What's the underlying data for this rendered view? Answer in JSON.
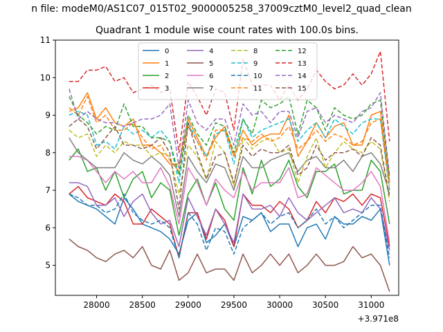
{
  "figure": {
    "suptitle": "n file: modeM0/AS1C07_015T02_9000005258_37009cztM0_level2_quad_clean"
  },
  "chart_data": {
    "type": "line",
    "title": "Quadrant 1 module wise count rates with 100.0s bins.",
    "xlabel": "",
    "ylabel": "",
    "x_offset_label": "+3.971e8",
    "xlim": [
      27550,
      31300
    ],
    "ylim": [
      4.2,
      11.0
    ],
    "xticks": [
      28000,
      28500,
      29000,
      29500,
      30000,
      30500,
      31000
    ],
    "yticks": [
      5,
      6,
      7,
      8,
      9,
      10,
      11
    ],
    "legend_position": "top-center",
    "legend_columns": 4,
    "x": [
      27700,
      27800,
      27900,
      28000,
      28100,
      28200,
      28300,
      28400,
      28500,
      28600,
      28700,
      28800,
      28900,
      29000,
      29100,
      29200,
      29300,
      29400,
      29500,
      29600,
      29700,
      29800,
      29900,
      30000,
      30100,
      30200,
      30300,
      30400,
      30500,
      30600,
      30700,
      30800,
      30900,
      31000,
      31100,
      31200
    ],
    "series": [
      {
        "name": "0",
        "color": "#1f77b4",
        "dash": "",
        "values": [
          6.9,
          6.7,
          6.6,
          6.5,
          6.3,
          6.1,
          6.8,
          6.5,
          6.1,
          6.0,
          5.9,
          5.7,
          5.3,
          6.2,
          6.4,
          5.6,
          5.8,
          6.1,
          5.5,
          6.3,
          6.2,
          6.4,
          5.9,
          6.1,
          6.1,
          5.5,
          6.0,
          6.1,
          5.7,
          6.3,
          6.1,
          6.1,
          6.3,
          6.2,
          6.5,
          5.0
        ]
      },
      {
        "name": "1",
        "color": "#ff7f0e",
        "dash": "",
        "values": [
          9.1,
          9.2,
          9.6,
          8.9,
          9.2,
          8.8,
          8.7,
          8.9,
          8.2,
          8.2,
          8.0,
          7.7,
          7.7,
          8.9,
          8.4,
          7.9,
          8.4,
          8.7,
          7.9,
          8.6,
          8.2,
          8.4,
          8.5,
          8.5,
          9.0,
          7.9,
          8.3,
          8.8,
          8.4,
          8.7,
          8.8,
          8.2,
          8.2,
          9.0,
          9.1,
          7.2
        ]
      },
      {
        "name": "2",
        "color": "#2ca02c",
        "dash": "",
        "values": [
          7.8,
          8.1,
          7.5,
          7.6,
          7.0,
          7.5,
          6.8,
          7.3,
          7.5,
          6.8,
          7.2,
          7.0,
          5.8,
          6.9,
          7.3,
          6.6,
          7.2,
          6.5,
          6.2,
          7.6,
          6.9,
          7.8,
          7.1,
          7.3,
          7.8,
          7.1,
          6.8,
          7.5,
          7.5,
          7.7,
          6.9,
          7.0,
          7.0,
          7.8,
          7.5,
          6.1
        ]
      },
      {
        "name": "3",
        "color": "#d62728",
        "dash": "",
        "values": [
          6.9,
          7.1,
          6.8,
          6.7,
          6.6,
          6.9,
          6.7,
          6.1,
          6.1,
          6.5,
          6.3,
          6.1,
          5.2,
          6.4,
          6.4,
          5.7,
          6.5,
          6.2,
          5.5,
          6.9,
          6.6,
          6.6,
          6.4,
          6.7,
          6.5,
          6.0,
          6.2,
          6.7,
          6.4,
          6.8,
          6.7,
          6.9,
          6.6,
          6.9,
          6.8,
          5.5
        ]
      },
      {
        "name": "4",
        "color": "#9467bd",
        "dash": "",
        "values": [
          7.2,
          7.2,
          7.1,
          6.6,
          6.6,
          6.8,
          6.3,
          6.7,
          6.9,
          6.4,
          6.1,
          6.2,
          5.5,
          6.8,
          6.3,
          5.8,
          6.5,
          6.1,
          5.6,
          6.9,
          6.5,
          6.5,
          6.6,
          6.3,
          6.8,
          6.4,
          6.2,
          6.4,
          6.6,
          6.8,
          6.4,
          6.5,
          6.4,
          6.8,
          6.5,
          5.4
        ]
      },
      {
        "name": "5",
        "color": "#8c564b",
        "dash": "",
        "values": [
          5.7,
          5.5,
          5.4,
          5.2,
          5.1,
          5.3,
          5.4,
          5.2,
          5.5,
          5.0,
          4.9,
          5.4,
          4.6,
          4.8,
          5.3,
          4.8,
          4.9,
          4.9,
          4.6,
          5.3,
          4.8,
          5.0,
          5.3,
          5.0,
          5.3,
          4.8,
          5.0,
          5.3,
          5.0,
          5.0,
          5.1,
          5.5,
          5.2,
          5.3,
          5.0,
          4.3
        ]
      },
      {
        "name": "6",
        "color": "#e377c2",
        "dash": "",
        "values": [
          7.9,
          7.9,
          7.8,
          7.5,
          7.2,
          7.5,
          7.3,
          7.5,
          7.2,
          7.2,
          7.6,
          7.1,
          6.1,
          7.6,
          7.2,
          6.6,
          7.3,
          7.0,
          6.8,
          7.5,
          7.0,
          7.2,
          7.2,
          7.2,
          7.6,
          6.8,
          6.9,
          7.6,
          7.4,
          7.2,
          7.0,
          7.0,
          7.2,
          7.5,
          7.1,
          5.6
        ]
      },
      {
        "name": "7",
        "color": "#7f7f7f",
        "dash": "",
        "values": [
          8.4,
          8.0,
          7.8,
          7.6,
          7.6,
          7.6,
          8.0,
          7.8,
          7.7,
          7.9,
          7.7,
          7.4,
          6.3,
          7.9,
          7.5,
          7.2,
          7.7,
          7.6,
          7.0,
          7.9,
          7.6,
          7.6,
          7.8,
          7.9,
          8.0,
          7.5,
          7.8,
          7.9,
          7.6,
          7.6,
          7.8,
          7.5,
          7.9,
          8.0,
          7.7,
          6.9
        ]
      },
      {
        "name": "8",
        "color": "#bcbd22",
        "dash": "6,3",
        "values": [
          8.6,
          8.4,
          8.5,
          7.9,
          8.2,
          8.0,
          8.3,
          8.2,
          8.2,
          7.9,
          8.0,
          7.9,
          6.9,
          8.2,
          7.9,
          7.3,
          8.3,
          8.0,
          7.1,
          8.4,
          8.1,
          8.3,
          8.4,
          8.0,
          8.1,
          7.2,
          7.9,
          8.4,
          7.6,
          8.0,
          8.3,
          8.1,
          8.0,
          8.3,
          8.1,
          6.7
        ]
      },
      {
        "name": "9",
        "color": "#17becf",
        "dash": "6,3",
        "values": [
          9.0,
          9.1,
          9.0,
          8.2,
          8.3,
          8.1,
          8.7,
          8.5,
          8.6,
          8.4,
          8.6,
          8.3,
          7.2,
          8.8,
          8.3,
          7.9,
          8.5,
          8.6,
          7.7,
          8.9,
          8.4,
          8.6,
          8.7,
          8.8,
          8.9,
          8.3,
          8.6,
          8.8,
          8.4,
          8.9,
          8.7,
          8.5,
          8.8,
          8.9,
          8.9,
          7.0
        ]
      },
      {
        "name": "10",
        "color": "#1f77b4",
        "dash": "6,3",
        "values": [
          6.9,
          6.8,
          6.6,
          6.6,
          6.4,
          6.5,
          6.9,
          6.4,
          6.2,
          6.1,
          6.2,
          6.0,
          5.2,
          6.4,
          6.1,
          5.4,
          6.0,
          5.9,
          5.3,
          6.0,
          6.2,
          6.4,
          6.1,
          6.3,
          6.4,
          6.0,
          6.2,
          6.5,
          6.1,
          6.3,
          6.0,
          6.2,
          6.4,
          6.6,
          6.6,
          5.2
        ]
      },
      {
        "name": "11",
        "color": "#ff7f0e",
        "dash": "6,3",
        "values": [
          9.2,
          9.0,
          9.5,
          8.8,
          9.0,
          8.6,
          8.6,
          8.8,
          8.4,
          8.1,
          8.2,
          7.8,
          7.5,
          8.7,
          8.3,
          7.8,
          8.6,
          8.6,
          7.9,
          8.4,
          8.3,
          8.5,
          8.3,
          8.4,
          8.7,
          8.1,
          8.3,
          8.6,
          8.3,
          8.5,
          8.4,
          8.2,
          8.3,
          8.8,
          8.9,
          7.1
        ]
      },
      {
        "name": "12",
        "color": "#2ca02c",
        "dash": "6,3",
        "values": [
          9.5,
          9.0,
          8.8,
          8.5,
          8.7,
          8.6,
          9.3,
          8.7,
          8.7,
          8.4,
          8.4,
          8.3,
          7.4,
          9.0,
          8.5,
          8.2,
          8.8,
          8.7,
          8.0,
          8.9,
          8.5,
          9.4,
          9.2,
          9.3,
          9.5,
          8.5,
          9.4,
          9.2,
          8.6,
          9.2,
          9.0,
          8.9,
          9.0,
          9.3,
          9.4,
          7.3
        ]
      },
      {
        "name": "13",
        "color": "#d62728",
        "dash": "6,3",
        "values": [
          9.9,
          9.9,
          10.2,
          10.2,
          10.3,
          9.9,
          10.0,
          9.6,
          9.7,
          9.8,
          9.6,
          9.7,
          8.0,
          9.9,
          9.5,
          9.0,
          9.7,
          9.6,
          8.6,
          10.5,
          9.8,
          9.8,
          9.8,
          9.4,
          9.8,
          9.4,
          9.7,
          10.2,
          9.9,
          9.7,
          9.8,
          10.1,
          9.8,
          10.1,
          10.7,
          8.3
        ]
      },
      {
        "name": "14",
        "color": "#9467bd",
        "dash": "6,3",
        "values": [
          9.7,
          8.9,
          9.1,
          8.9,
          8.8,
          8.8,
          8.7,
          8.8,
          8.9,
          8.9,
          9.0,
          9.3,
          7.6,
          9.4,
          8.8,
          8.6,
          8.9,
          8.9,
          8.2,
          9.3,
          9.0,
          9.1,
          8.8,
          9.1,
          9.1,
          8.4,
          9.1,
          9.2,
          8.8,
          9.0,
          8.9,
          8.8,
          9.1,
          9.2,
          9.6,
          7.4
        ]
      },
      {
        "name": "15",
        "color": "#8c564b",
        "dash": "6,3",
        "values": [
          8.7,
          8.9,
          8.7,
          8.1,
          8.4,
          8.7,
          8.2,
          8.2,
          8.1,
          8.2,
          8.4,
          8.0,
          6.5,
          8.8,
          8.0,
          7.3,
          7.9,
          8.0,
          7.2,
          8.2,
          7.9,
          8.1,
          8.0,
          8.0,
          8.2,
          7.4,
          7.6,
          8.2,
          7.8,
          8.0,
          8.0,
          8.1,
          7.9,
          8.4,
          8.2,
          6.8
        ]
      }
    ]
  }
}
